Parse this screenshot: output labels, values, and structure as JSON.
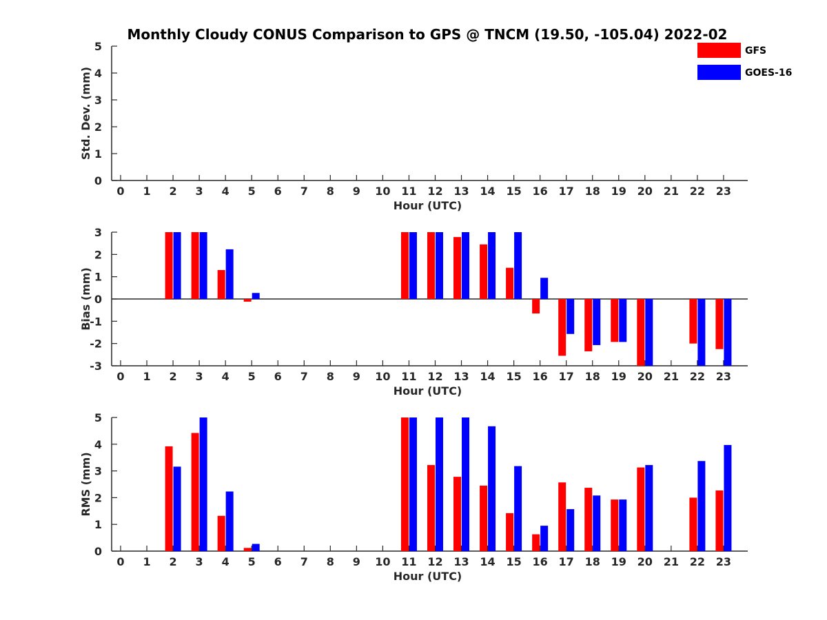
{
  "chart_data": {
    "type": "bar",
    "title": "Monthly Cloudy CONUS Comparison to GPS @ TNCM (19.50, -105.04) 2022-02",
    "legend": {
      "placement": "top-right",
      "entries": [
        {
          "name": "GFS",
          "color": "#ff0000"
        },
        {
          "name": "GOES-16",
          "color": "#0000ff"
        }
      ]
    },
    "categories": [
      "0",
      "1",
      "2",
      "3",
      "4",
      "5",
      "6",
      "7",
      "8",
      "9",
      "10",
      "11",
      "12",
      "13",
      "14",
      "15",
      "16",
      "17",
      "18",
      "19",
      "20",
      "21",
      "22",
      "23"
    ],
    "panels": [
      {
        "ylabel": "Std. Dev. (mm)",
        "xlabel": "Hour (UTC)",
        "ylim": [
          0,
          5
        ],
        "yticks": [
          "0",
          "1",
          "2",
          "3",
          "4",
          "5"
        ],
        "zero_line": false,
        "series": [
          {
            "name": "GFS",
            "values": [
              null,
              null,
              null,
              null,
              null,
              null,
              null,
              null,
              null,
              null,
              null,
              null,
              null,
              null,
              null,
              null,
              null,
              null,
              null,
              null,
              null,
              null,
              null,
              null
            ]
          },
          {
            "name": "GOES-16",
            "values": [
              null,
              null,
              null,
              null,
              null,
              null,
              null,
              null,
              null,
              null,
              null,
              null,
              null,
              null,
              null,
              null,
              null,
              null,
              null,
              null,
              null,
              null,
              null,
              null
            ]
          }
        ]
      },
      {
        "ylabel": "Bias (mm)",
        "xlabel": "Hour (UTC)",
        "ylim": [
          -3,
          3
        ],
        "yticks": [
          "-3",
          "-2",
          "-1",
          "0",
          "1",
          "2",
          "3"
        ],
        "zero_line": true,
        "series": [
          {
            "name": "GFS",
            "values": [
              null,
              null,
              3.0,
              3.0,
              1.3,
              -0.12,
              null,
              null,
              null,
              null,
              null,
              3.0,
              3.0,
              2.78,
              2.45,
              1.4,
              -0.65,
              -2.55,
              -2.35,
              -1.93,
              -3.0,
              null,
              -2.0,
              -2.25
            ]
          },
          {
            "name": "GOES-16",
            "values": [
              null,
              null,
              3.0,
              3.0,
              2.23,
              0.27,
              null,
              null,
              null,
              null,
              null,
              3.0,
              3.0,
              3.0,
              3.0,
              3.0,
              0.95,
              -1.57,
              -2.07,
              -1.93,
              -3.0,
              null,
              -3.0,
              -3.0
            ]
          }
        ]
      },
      {
        "ylabel": "RMS (mm)",
        "xlabel": "Hour (UTC)",
        "ylim": [
          0,
          5
        ],
        "yticks": [
          "0",
          "1",
          "2",
          "3",
          "4",
          "5"
        ],
        "zero_line": false,
        "series": [
          {
            "name": "GFS",
            "values": [
              null,
              null,
              3.92,
              4.42,
              1.32,
              0.12,
              null,
              null,
              null,
              null,
              null,
              5.0,
              3.22,
              2.78,
              2.45,
              1.42,
              0.63,
              2.57,
              2.37,
              1.93,
              3.13,
              null,
              2.0,
              2.27
            ]
          },
          {
            "name": "GOES-16",
            "values": [
              null,
              null,
              3.16,
              5.0,
              2.23,
              0.27,
              null,
              null,
              null,
              null,
              null,
              5.0,
              5.0,
              5.0,
              4.67,
              3.18,
              0.95,
              1.57,
              2.08,
              1.93,
              3.22,
              null,
              3.37,
              3.97
            ]
          }
        ]
      }
    ]
  }
}
